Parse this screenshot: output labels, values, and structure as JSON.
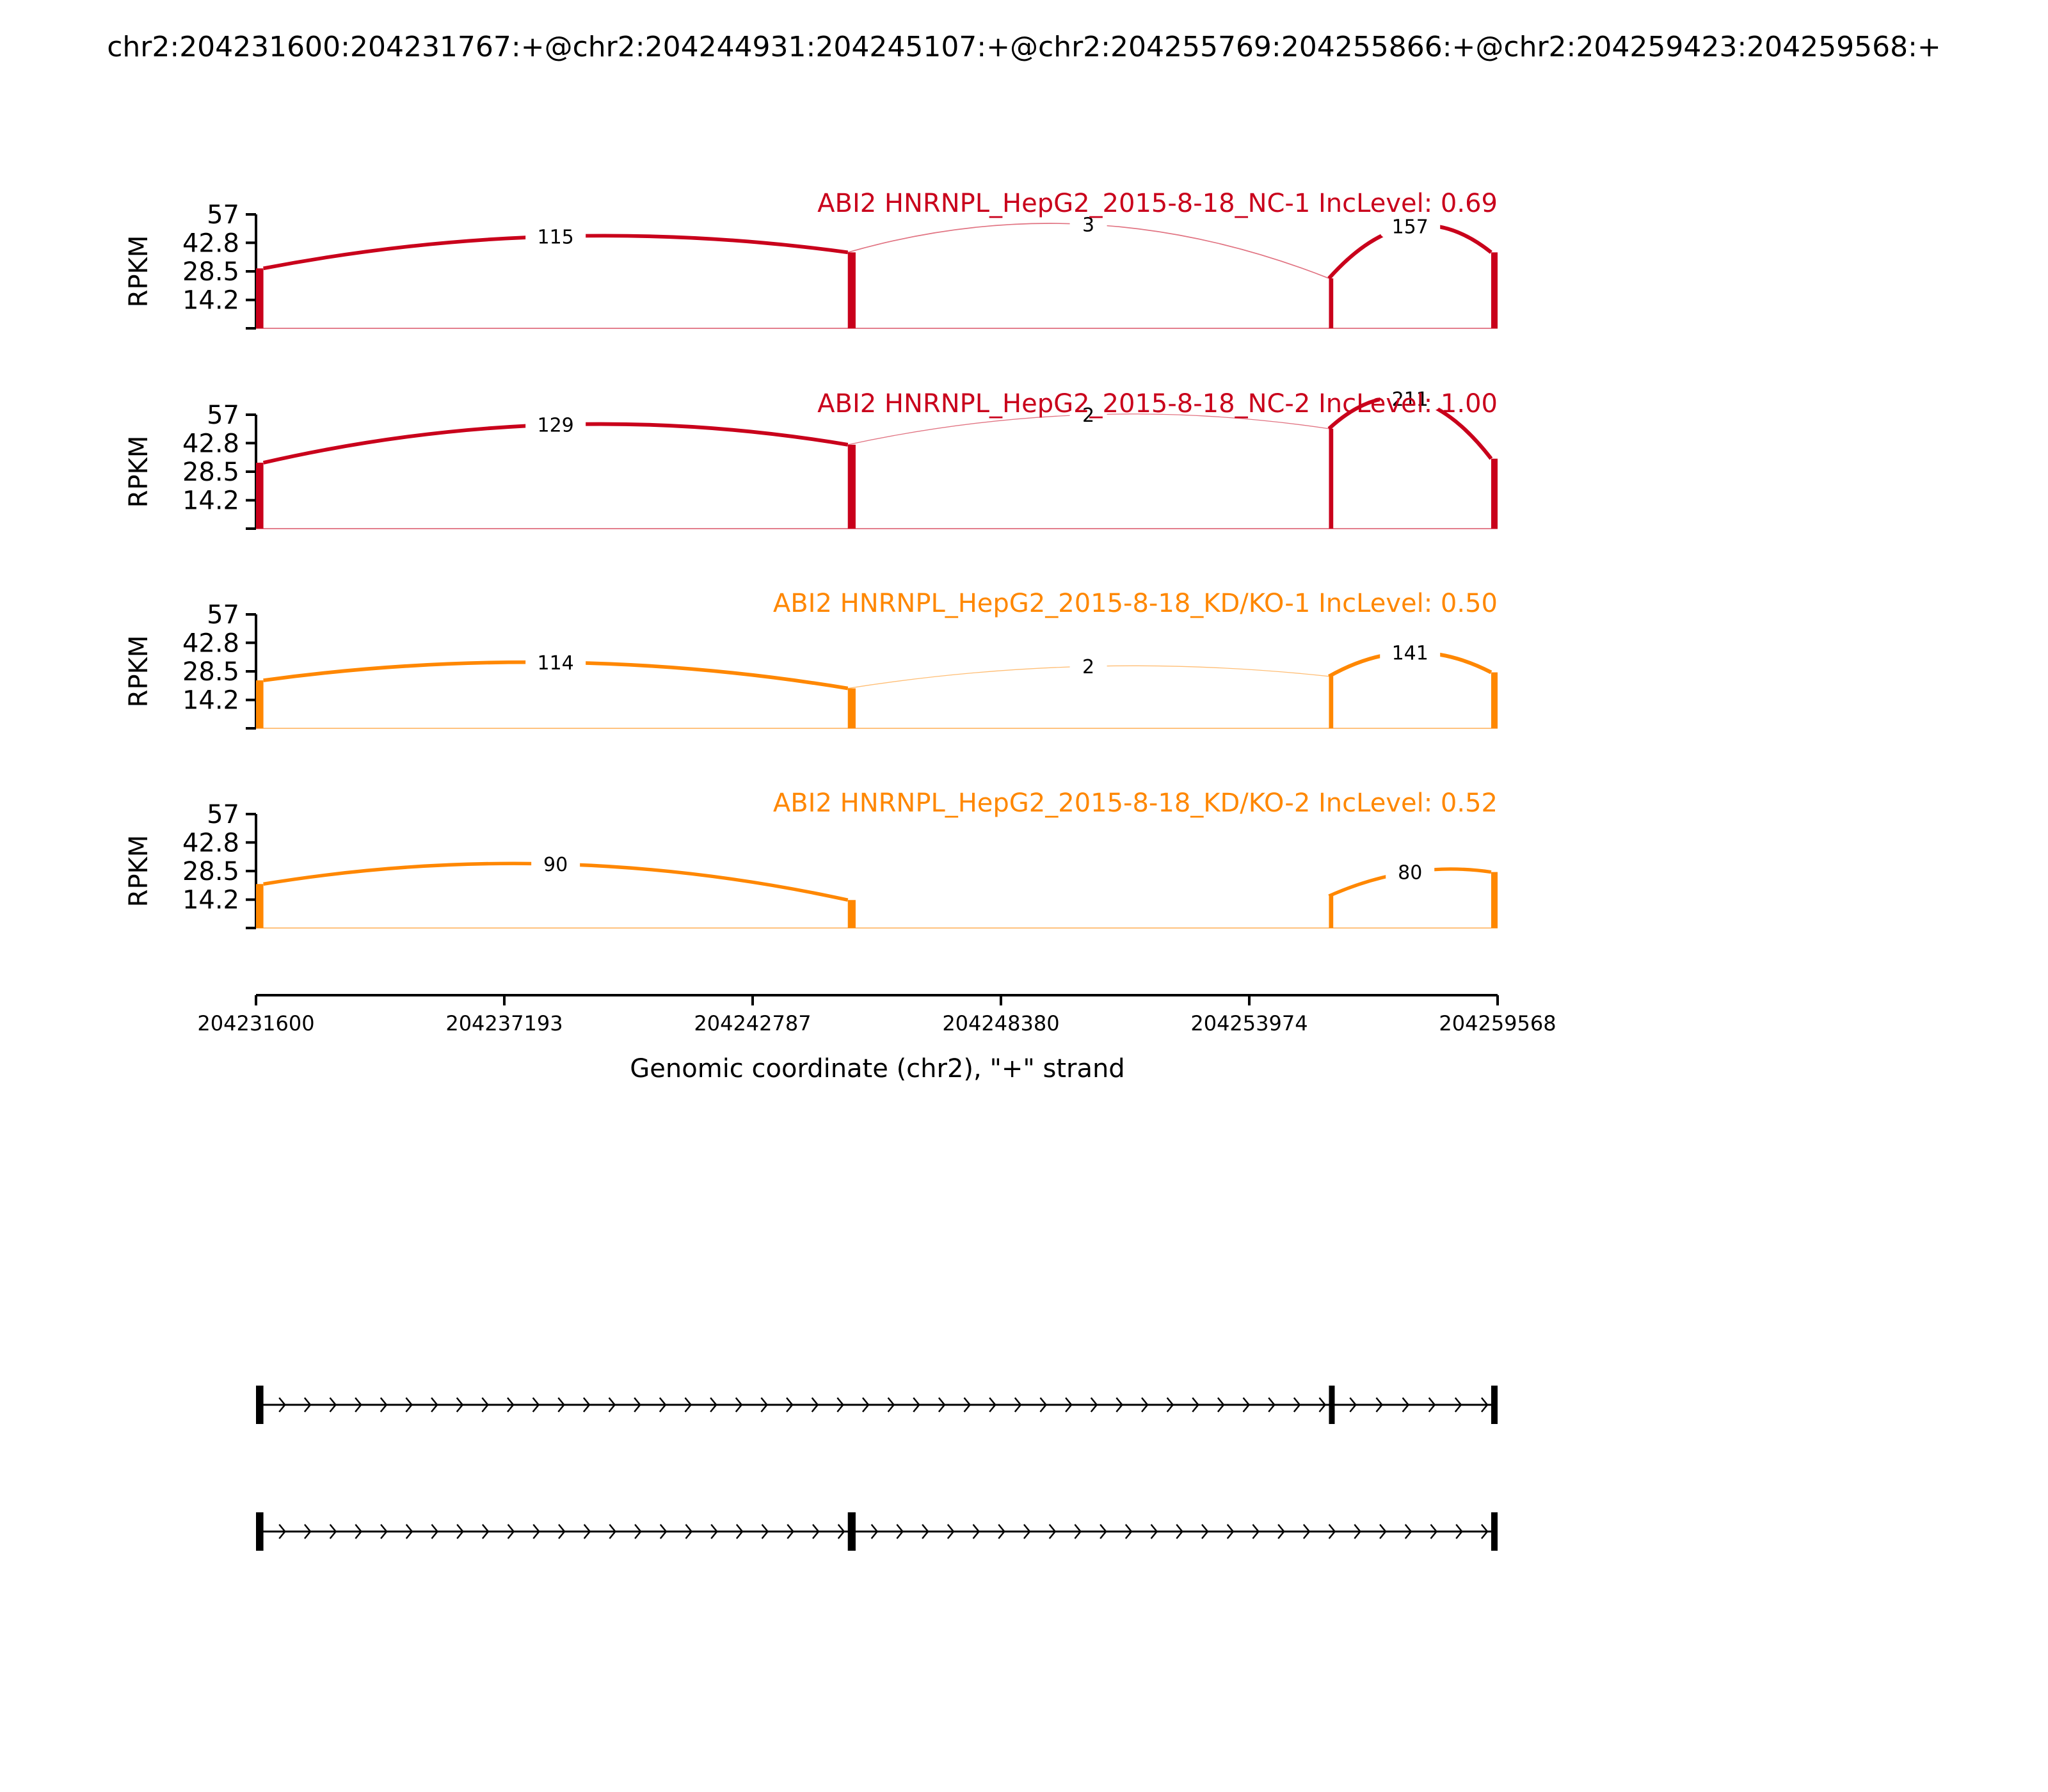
{
  "chart_data": {
    "type": "sashimi",
    "title": "chr2:204231600:204231767:+@chr2:204244931:204245107:+@chr2:204255769:204255866:+@chr2:204259423:204259568:+",
    "xlabel": "Genomic coordinate (chr2), \"+\" strand",
    "xlim": [
      204231600,
      204259568
    ],
    "x_ticks": [
      204231600,
      204237193,
      204242787,
      204248380,
      204253974,
      204259568
    ],
    "x_tick_labels": [
      "204231600",
      "204237193",
      "204242787",
      "204248380",
      "204253974",
      "204259568"
    ],
    "ylabel": "RPKM",
    "ylim": [
      0,
      57
    ],
    "y_ticks": [
      14.2,
      28.5,
      42.8,
      57
    ],
    "y_tick_labels": [
      "14.2",
      "28.5",
      "42.8",
      "57"
    ],
    "exons": [
      {
        "start": 204231600,
        "end": 204231767
      },
      {
        "start": 204244931,
        "end": 204245107
      },
      {
        "start": 204255769,
        "end": 204255866
      },
      {
        "start": 204259423,
        "end": 204259568
      }
    ],
    "tracks": [
      {
        "label": "ABI2 HNRNPL_HepG2_2015-8-18_NC-1 IncLevel: 0.69",
        "color": "#c9001b",
        "coverage": [
          30,
          38,
          25,
          38
        ],
        "junctions": [
          {
            "start": 204231767,
            "end": 204244931,
            "count": "115",
            "height": 46
          },
          {
            "start": 204244931,
            "end": 204255769,
            "count": "3",
            "height": 52
          },
          {
            "start": 204255769,
            "end": 204259423,
            "count": "157",
            "height": 51
          }
        ]
      },
      {
        "label": "ABI2 HNRNPL_HepG2_2015-8-18_NC-2 IncLevel: 1.00",
        "color": "#c9001b",
        "coverage": [
          33,
          42,
          50,
          35
        ],
        "junctions": [
          {
            "start": 204231767,
            "end": 204244931,
            "count": "129",
            "height": 52
          },
          {
            "start": 204244931,
            "end": 204255769,
            "count": "2",
            "height": 57
          },
          {
            "start": 204255769,
            "end": 204259423,
            "count": "211",
            "height": 65
          }
        ]
      },
      {
        "label": "ABI2 HNRNPL_HepG2_2015-8-18_KD/KO-1 IncLevel: 0.50",
        "color": "#ff8700",
        "coverage": [
          24,
          20,
          26,
          28
        ],
        "junctions": [
          {
            "start": 204231767,
            "end": 204244931,
            "count": "114",
            "height": 33
          },
          {
            "start": 204244931,
            "end": 204255769,
            "count": "2",
            "height": 31
          },
          {
            "start": 204255769,
            "end": 204259423,
            "count": "141",
            "height": 38
          }
        ]
      },
      {
        "label": "ABI2 HNRNPL_HepG2_2015-8-18_KD/KO-2 IncLevel: 0.52",
        "color": "#ff8700",
        "coverage": [
          22,
          14,
          16,
          28
        ],
        "junctions": [
          {
            "start": 204231767,
            "end": 204244931,
            "count": "90",
            "height": 32
          },
          {
            "start": 204255769,
            "end": 204259423,
            "count": "80",
            "height": 28
          }
        ]
      }
    ],
    "isoforms": [
      {
        "exons": [
          0,
          2,
          3
        ]
      },
      {
        "exons": [
          0,
          1,
          3
        ]
      }
    ]
  }
}
